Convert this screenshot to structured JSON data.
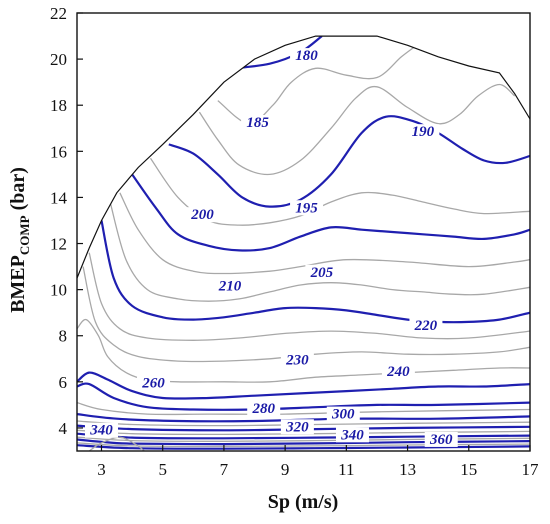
{
  "chart_data": {
    "type": "contour",
    "xlabel": "Sp (m/s)",
    "ylabel_main": "BMEP",
    "ylabel_sub": "COMP",
    "ylabel_unit": " (bar)",
    "xlim": [
      2.2,
      17
    ],
    "ylim": [
      3,
      22
    ],
    "x_ticks": [
      3,
      5,
      7,
      9,
      11,
      13,
      15,
      17
    ],
    "y_ticks": [
      4,
      6,
      8,
      10,
      12,
      14,
      16,
      18,
      20,
      22
    ],
    "colors": {
      "major": "#1f1fb0",
      "minor": "#a8a8a8",
      "boundary": "#111111"
    },
    "boundary": [
      [
        2.2,
        10.5
      ],
      [
        2.6,
        11.8
      ],
      [
        3.0,
        13.0
      ],
      [
        3.5,
        14.2
      ],
      [
        4.2,
        15.3
      ],
      [
        5.0,
        16.3
      ],
      [
        6.0,
        17.6
      ],
      [
        7.0,
        19.0
      ],
      [
        8.0,
        20.0
      ],
      [
        9.0,
        20.6
      ],
      [
        10.0,
        21.0
      ],
      [
        11.0,
        21.0
      ],
      [
        12.0,
        21.0
      ],
      [
        13.0,
        20.6
      ],
      [
        14.0,
        20.1
      ],
      [
        15.0,
        19.7
      ],
      [
        16.0,
        19.4
      ],
      [
        16.5,
        18.5
      ],
      [
        17.0,
        17.4
      ]
    ],
    "contours": [
      {
        "level": "180",
        "major": true,
        "points": [
          [
            7.3,
            19.6
          ],
          [
            8.5,
            19.8
          ],
          [
            9.5,
            20.3
          ],
          [
            10.2,
            21.0
          ]
        ],
        "label_at": [
          9.7,
          20.0
        ]
      },
      {
        "level": "",
        "major": false,
        "points": [
          [
            6.8,
            18.2
          ],
          [
            7.8,
            17.2
          ],
          [
            8.6,
            18.0
          ],
          [
            9.2,
            19.0
          ],
          [
            10.0,
            19.6
          ],
          [
            11.0,
            19.3
          ],
          [
            12.0,
            19.2
          ],
          [
            12.8,
            20.1
          ],
          [
            13.3,
            20.6
          ]
        ]
      },
      {
        "level": "185",
        "major": false,
        "points": [
          [
            6.2,
            17.7
          ],
          [
            6.8,
            16.5
          ],
          [
            7.5,
            15.4
          ],
          [
            8.5,
            15.0
          ],
          [
            9.5,
            15.6
          ],
          [
            10.5,
            17.0
          ],
          [
            11.3,
            18.3
          ],
          [
            12.0,
            18.8
          ],
          [
            13.0,
            17.9
          ],
          [
            14.0,
            17.2
          ],
          [
            14.7,
            17.6
          ],
          [
            15.3,
            18.4
          ],
          [
            16.0,
            18.9
          ],
          [
            16.5,
            18.4
          ]
        ],
        "label_at": [
          8.1,
          17.1
        ]
      },
      {
        "level": "190",
        "major": true,
        "points": [
          [
            5.2,
            16.3
          ],
          [
            6.0,
            15.9
          ],
          [
            6.8,
            15.0
          ],
          [
            7.6,
            14.0
          ],
          [
            8.5,
            13.6
          ],
          [
            9.5,
            13.9
          ],
          [
            10.5,
            15.0
          ],
          [
            11.5,
            16.8
          ],
          [
            12.3,
            17.5
          ],
          [
            13.2,
            17.3
          ],
          [
            14.0,
            16.8
          ],
          [
            14.8,
            16.1
          ],
          [
            15.5,
            15.6
          ],
          [
            16.2,
            15.5
          ],
          [
            17.0,
            15.8
          ]
        ],
        "label_at": [
          13.5,
          16.7
        ]
      },
      {
        "level": "195",
        "major": false,
        "points": [
          [
            4.6,
            15.7
          ],
          [
            5.5,
            14.0
          ],
          [
            6.5,
            13.0
          ],
          [
            7.5,
            12.8
          ],
          [
            8.5,
            12.9
          ],
          [
            9.5,
            13.2
          ],
          [
            10.5,
            13.8
          ],
          [
            11.5,
            14.2
          ],
          [
            12.5,
            14.1
          ],
          [
            13.5,
            13.8
          ],
          [
            14.5,
            13.5
          ],
          [
            15.5,
            13.3
          ],
          [
            17.0,
            13.4
          ]
        ],
        "label_at": [
          9.7,
          13.4
        ]
      },
      {
        "level": "200",
        "major": true,
        "points": [
          [
            4.0,
            15.0
          ],
          [
            4.8,
            13.5
          ],
          [
            5.5,
            12.4
          ],
          [
            6.5,
            11.9
          ],
          [
            7.5,
            11.7
          ],
          [
            8.5,
            11.8
          ],
          [
            9.5,
            12.3
          ],
          [
            10.5,
            12.7
          ],
          [
            11.5,
            12.6
          ],
          [
            12.5,
            12.5
          ],
          [
            13.5,
            12.4
          ],
          [
            14.5,
            12.3
          ],
          [
            15.5,
            12.2
          ],
          [
            16.5,
            12.4
          ],
          [
            17.0,
            12.6
          ]
        ],
        "label_at": [
          6.3,
          13.1
        ]
      },
      {
        "level": "",
        "major": false,
        "points": [
          [
            3.6,
            14.2
          ],
          [
            4.2,
            12.6
          ],
          [
            5.0,
            11.3
          ],
          [
            6.0,
            10.8
          ],
          [
            7.0,
            10.7
          ],
          [
            8.5,
            10.8
          ],
          [
            9.5,
            11.0
          ],
          [
            11.0,
            11.3
          ],
          [
            13.0,
            11.2
          ],
          [
            15.0,
            11.0
          ],
          [
            16.5,
            11.2
          ],
          [
            17.0,
            11.3
          ]
        ]
      },
      {
        "level": "205",
        "major": false,
        "points": [
          [
            3.3,
            13.7
          ],
          [
            3.8,
            11.3
          ],
          [
            4.5,
            10.0
          ],
          [
            5.5,
            9.6
          ],
          [
            6.5,
            9.5
          ],
          [
            7.5,
            9.6
          ],
          [
            8.5,
            9.9
          ],
          [
            9.5,
            10.2
          ],
          [
            10.5,
            10.3
          ],
          [
            11.5,
            10.2
          ],
          [
            12.5,
            10.0
          ],
          [
            13.5,
            9.9
          ],
          [
            14.5,
            9.8
          ],
          [
            15.5,
            9.8
          ],
          [
            17.0,
            10.1
          ]
        ],
        "label_at": [
          10.2,
          10.6
        ]
      },
      {
        "level": "210",
        "major": true,
        "points": [
          [
            3.0,
            13.0
          ],
          [
            3.4,
            10.5
          ],
          [
            4.0,
            9.3
          ],
          [
            5.0,
            8.8
          ],
          [
            6.0,
            8.7
          ],
          [
            7.0,
            8.8
          ],
          [
            8.0,
            9.0
          ],
          [
            9.0,
            9.2
          ],
          [
            10.0,
            9.2
          ],
          [
            11.0,
            9.1
          ],
          [
            12.0,
            8.9
          ],
          [
            13.0,
            8.7
          ],
          [
            14.0,
            8.6
          ],
          [
            15.0,
            8.6
          ],
          [
            16.0,
            8.7
          ],
          [
            17.0,
            9.0
          ]
        ],
        "label_at": [
          7.2,
          10.0
        ]
      },
      {
        "level": "",
        "major": false,
        "points": [
          [
            2.6,
            11.6
          ],
          [
            3.0,
            9.4
          ],
          [
            3.6,
            8.3
          ],
          [
            4.5,
            7.9
          ],
          [
            6.0,
            7.8
          ],
          [
            7.5,
            7.9
          ],
          [
            9.0,
            8.1
          ],
          [
            10.5,
            8.2
          ],
          [
            12.0,
            8.1
          ],
          [
            13.5,
            7.9
          ],
          [
            15.0,
            7.9
          ],
          [
            17.0,
            8.2
          ]
        ]
      },
      {
        "level": "220",
        "major": false,
        "points": [
          [
            2.4,
            11.0
          ],
          [
            2.8,
            8.6
          ],
          [
            3.4,
            7.6
          ],
          [
            4.2,
            7.1
          ],
          [
            5.5,
            6.9
          ],
          [
            7.0,
            6.9
          ],
          [
            8.5,
            7.0
          ],
          [
            10.0,
            7.2
          ],
          [
            11.5,
            7.3
          ],
          [
            13.0,
            7.2
          ],
          [
            14.5,
            7.2
          ],
          [
            16.0,
            7.3
          ],
          [
            17.0,
            7.5
          ]
        ],
        "label_at": [
          13.6,
          8.3
        ]
      },
      {
        "level": "230",
        "major": false,
        "points": [
          [
            2.2,
            8.3
          ],
          [
            2.5,
            8.7
          ],
          [
            2.9,
            8.0
          ],
          [
            3.2,
            7.1
          ],
          [
            3.8,
            6.4
          ],
          [
            4.5,
            6.1
          ],
          [
            5.5,
            6.0
          ],
          [
            7.0,
            6.0
          ],
          [
            8.5,
            6.0
          ],
          [
            10.0,
            6.2
          ],
          [
            11.5,
            6.3
          ],
          [
            13.0,
            6.4
          ],
          [
            14.5,
            6.5
          ],
          [
            16.0,
            6.6
          ],
          [
            17.0,
            6.6
          ]
        ],
        "label_at": [
          9.4,
          6.8
        ]
      },
      {
        "level": "240",
        "major": true,
        "points": [
          [
            2.2,
            6.0
          ],
          [
            2.6,
            6.4
          ],
          [
            3.2,
            6.1
          ],
          [
            4.0,
            5.6
          ],
          [
            5.0,
            5.3
          ],
          [
            6.5,
            5.3
          ],
          [
            8.0,
            5.4
          ],
          [
            9.5,
            5.5
          ],
          [
            11.0,
            5.6
          ],
          [
            12.5,
            5.7
          ],
          [
            14.0,
            5.8
          ],
          [
            15.5,
            5.8
          ],
          [
            17.0,
            5.9
          ]
        ],
        "label_at": [
          12.7,
          6.3
        ]
      },
      {
        "level": "260",
        "major": true,
        "points": [
          [
            2.2,
            5.8
          ],
          [
            2.6,
            5.9
          ],
          [
            3.4,
            5.3
          ],
          [
            4.5,
            4.9
          ],
          [
            6.0,
            4.8
          ],
          [
            8.0,
            4.8
          ],
          [
            10.0,
            4.9
          ],
          [
            12.0,
            5.0
          ],
          [
            14.0,
            5.0
          ],
          [
            17.0,
            5.1
          ]
        ],
        "label_at": [
          4.7,
          5.8
        ]
      },
      {
        "level": "",
        "major": false,
        "points": [
          [
            2.2,
            5.1
          ],
          [
            3.0,
            4.8
          ],
          [
            4.5,
            4.6
          ],
          [
            6.5,
            4.6
          ],
          [
            9.0,
            4.6
          ],
          [
            12.0,
            4.7
          ],
          [
            17.0,
            4.8
          ]
        ]
      },
      {
        "level": "280",
        "major": true,
        "points": [
          [
            2.2,
            4.6
          ],
          [
            3.5,
            4.4
          ],
          [
            5.5,
            4.3
          ],
          [
            8.0,
            4.3
          ],
          [
            11.0,
            4.4
          ],
          [
            14.0,
            4.4
          ],
          [
            17.0,
            4.5
          ]
        ],
        "label_at": [
          8.3,
          4.7
        ]
      },
      {
        "level": "",
        "major": false,
        "points": [
          [
            2.2,
            4.3
          ],
          [
            4.0,
            4.15
          ],
          [
            7.0,
            4.1
          ],
          [
            10.0,
            4.15
          ],
          [
            13.0,
            4.2
          ],
          [
            17.0,
            4.25
          ]
        ]
      },
      {
        "level": "300",
        "major": true,
        "points": [
          [
            2.2,
            4.1
          ],
          [
            4.0,
            3.95
          ],
          [
            7.0,
            3.9
          ],
          [
            10.0,
            3.95
          ],
          [
            13.0,
            4.0
          ],
          [
            17.0,
            4.05
          ]
        ],
        "label_at": [
          10.9,
          4.45
        ]
      },
      {
        "level": "",
        "major": false,
        "points": [
          [
            2.2,
            3.9
          ],
          [
            4.0,
            3.75
          ],
          [
            7.0,
            3.72
          ],
          [
            10.0,
            3.75
          ],
          [
            13.0,
            3.8
          ],
          [
            17.0,
            3.85
          ]
        ]
      },
      {
        "level": "320",
        "major": true,
        "points": [
          [
            2.2,
            3.75
          ],
          [
            4.0,
            3.58
          ],
          [
            7.0,
            3.55
          ],
          [
            10.0,
            3.58
          ],
          [
            13.0,
            3.62
          ],
          [
            17.0,
            3.67
          ]
        ],
        "label_at": [
          9.4,
          3.9
        ]
      },
      {
        "level": "",
        "major": false,
        "points": [
          [
            2.2,
            3.6
          ],
          [
            4.0,
            3.45
          ],
          [
            7.0,
            3.42
          ],
          [
            10.0,
            3.45
          ],
          [
            13.0,
            3.5
          ],
          [
            17.0,
            3.55
          ]
        ]
      },
      {
        "level": "340",
        "major": true,
        "points": [
          [
            2.2,
            3.5
          ],
          [
            3.0,
            3.4
          ],
          [
            4.0,
            3.32
          ],
          [
            7.0,
            3.3
          ],
          [
            10.0,
            3.33
          ],
          [
            13.0,
            3.38
          ],
          [
            17.0,
            3.43
          ]
        ],
        "label_at": [
          11.2,
          3.55
        ]
      },
      {
        "level": "",
        "major": false,
        "points": [
          [
            2.2,
            3.35
          ],
          [
            4.0,
            3.22
          ],
          [
            7.0,
            3.2
          ],
          [
            10.0,
            3.22
          ],
          [
            13.0,
            3.26
          ],
          [
            17.0,
            3.3
          ]
        ]
      },
      {
        "level": "360",
        "major": true,
        "points": [
          [
            2.2,
            3.25
          ],
          [
            4.0,
            3.12
          ],
          [
            7.0,
            3.1
          ],
          [
            10.0,
            3.12
          ],
          [
            13.0,
            3.15
          ],
          [
            17.0,
            3.2
          ]
        ],
        "label_at": [
          14.1,
          3.35
        ]
      },
      {
        "level": "340",
        "major": false,
        "points": [
          [
            2.6,
            3.0
          ],
          [
            3.0,
            3.35
          ],
          [
            3.6,
            3.6
          ],
          [
            4.1,
            3.3
          ],
          [
            4.4,
            3.0
          ]
        ],
        "label_at": [
          3.0,
          3.75
        ]
      }
    ]
  }
}
